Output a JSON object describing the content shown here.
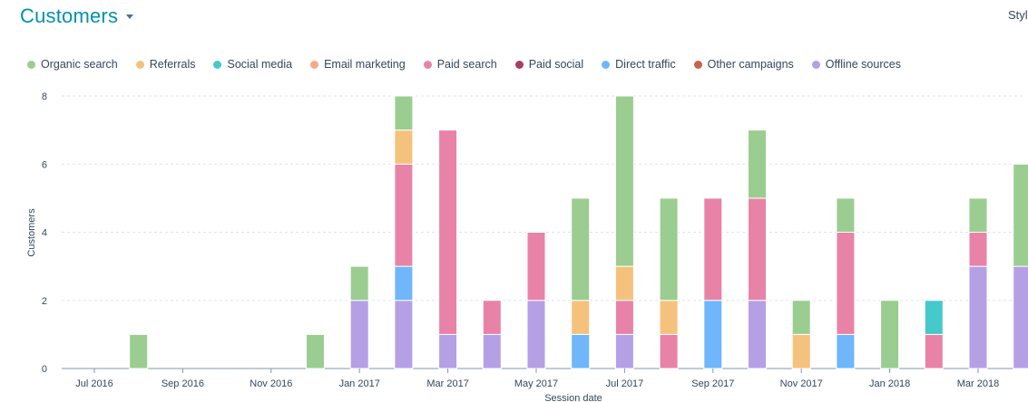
{
  "header": {
    "title": "Customers",
    "corner_label": "Styl"
  },
  "chart_data": {
    "type": "bar",
    "stacked": true,
    "title": "",
    "xlabel": "Session date",
    "ylabel": "Customers",
    "ylim": [
      0,
      8
    ],
    "yticks": [
      0,
      2,
      4,
      6,
      8
    ],
    "grid": true,
    "legend_position": "top-left",
    "x_tick_labels": [
      "Jul 2016",
      "Sep 2016",
      "Nov 2016",
      "Jan 2017",
      "Mar 2017",
      "May 2017",
      "Jul 2017",
      "Sep 2017",
      "Nov 2017",
      "Jan 2018",
      "Mar 2018"
    ],
    "categories": [
      "Jul 2016",
      "Aug 2016",
      "Sep 2016",
      "Oct 2016",
      "Nov 2016",
      "Dec 2016",
      "Jan 2017",
      "Feb 2017",
      "Mar 2017",
      "Apr 2017",
      "May 2017",
      "Jun 2017",
      "Jul 2017",
      "Aug 2017",
      "Sep 2017",
      "Oct 2017",
      "Nov 2017",
      "Dec 2017",
      "Jan 2018",
      "Feb 2018",
      "Mar 2018",
      "Apr 2018"
    ],
    "series": [
      {
        "name": "Organic search",
        "color": "#9bcd91",
        "values": [
          0,
          1,
          0,
          0,
          0,
          1,
          1,
          1,
          0,
          0,
          0,
          3,
          5,
          3,
          0,
          2,
          1,
          1,
          2,
          0,
          1,
          3
        ]
      },
      {
        "name": "Referrals",
        "color": "#f5c27d",
        "values": [
          0,
          0,
          0,
          0,
          0,
          0,
          0,
          1,
          0,
          0,
          0,
          1,
          1,
          1,
          0,
          0,
          1,
          0,
          0,
          0,
          0,
          0
        ]
      },
      {
        "name": "Social media",
        "color": "#45c9cb",
        "values": [
          0,
          0,
          0,
          0,
          0,
          0,
          0,
          0,
          0,
          0,
          0,
          0,
          0,
          0,
          0,
          0,
          0,
          0,
          0,
          1,
          0,
          0
        ]
      },
      {
        "name": "Email marketing",
        "color": "#f5a98a",
        "values": [
          0,
          0,
          0,
          0,
          0,
          0,
          0,
          0,
          0,
          0,
          0,
          0,
          0,
          0,
          0,
          0,
          0,
          0,
          0,
          0,
          0,
          0
        ]
      },
      {
        "name": "Paid search",
        "color": "#e883a7",
        "values": [
          0,
          0,
          0,
          0,
          0,
          0,
          0,
          3,
          6,
          1,
          2,
          0,
          1,
          1,
          3,
          3,
          0,
          3,
          0,
          1,
          1,
          0
        ]
      },
      {
        "name": "Paid social",
        "color": "#a5405f",
        "values": [
          0,
          0,
          0,
          0,
          0,
          0,
          0,
          0,
          0,
          0,
          0,
          0,
          0,
          0,
          0,
          0,
          0,
          0,
          0,
          0,
          0,
          0
        ]
      },
      {
        "name": "Direct traffic",
        "color": "#6fb6fa",
        "values": [
          0,
          0,
          0,
          0,
          0,
          0,
          0,
          1,
          0,
          0,
          0,
          1,
          0,
          0,
          2,
          0,
          0,
          1,
          0,
          0,
          0,
          0
        ]
      },
      {
        "name": "Other campaigns",
        "color": "#c7634b",
        "values": [
          0,
          0,
          0,
          0,
          0,
          0,
          0,
          0,
          0,
          0,
          0,
          0,
          0,
          0,
          0,
          0,
          0,
          0,
          0,
          0,
          0,
          0
        ]
      },
      {
        "name": "Offline sources",
        "color": "#b5a0e6",
        "values": [
          0,
          0,
          0,
          0,
          0,
          0,
          2,
          2,
          1,
          1,
          2,
          0,
          1,
          0,
          0,
          2,
          0,
          0,
          0,
          0,
          3,
          3
        ]
      }
    ],
    "stack_order_bottom_to_top": [
      "Offline sources",
      "Direct traffic",
      "Paid search",
      "Social media",
      "Referrals",
      "Organic search"
    ]
  }
}
